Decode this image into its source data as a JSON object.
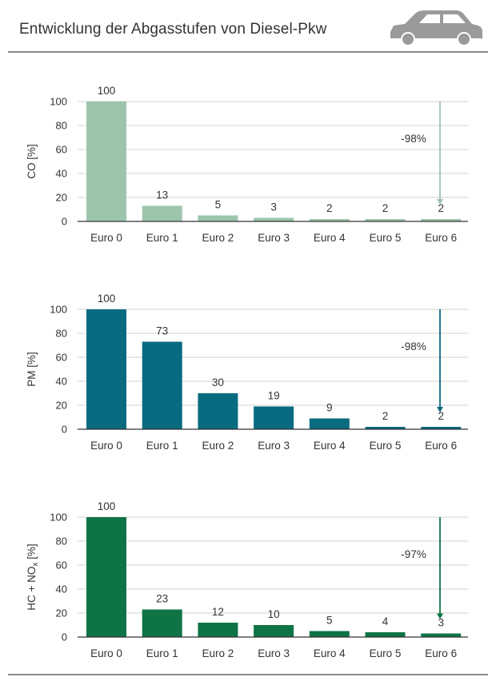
{
  "header": {
    "title": "Entwicklung der Abgasstufen von Diesel-Pkw",
    "icon": "car-icon"
  },
  "chart_data": [
    {
      "type": "bar",
      "ylabel": "CO [%]",
      "ylabel_sub": "",
      "ylim": [
        0,
        100
      ],
      "yticks": [
        0,
        20,
        40,
        60,
        80,
        100
      ],
      "color": "#9dc5ac",
      "arrow_color": "#9dc5ac",
      "categories": [
        "Euro 0",
        "Euro 1",
        "Euro 2",
        "Euro 3",
        "Euro 4",
        "Euro 5",
        "Euro 6"
      ],
      "values": [
        100,
        13,
        5,
        3,
        2,
        2,
        2
      ],
      "labels": [
        "100",
        "13",
        "5",
        "3",
        "2",
        "2",
        "2"
      ],
      "annotation": "-98%"
    },
    {
      "type": "bar",
      "ylabel": "PM [%]",
      "ylabel_sub": "",
      "ylim": [
        0,
        100
      ],
      "yticks": [
        0,
        20,
        40,
        60,
        80,
        100
      ],
      "color": "#096b80",
      "arrow_color": "#096b80",
      "categories": [
        "Euro 0",
        "Euro 1",
        "Euro 2",
        "Euro 3",
        "Euro 4",
        "Euro 5",
        "Euro 6"
      ],
      "values": [
        100,
        73,
        30,
        19,
        9,
        2,
        2
      ],
      "labels": [
        "100",
        "73",
        "30",
        "19",
        "9",
        "2",
        "2"
      ],
      "annotation": "-98%"
    },
    {
      "type": "bar",
      "ylabel": "HC + NO",
      "ylabel_sub": "x",
      "ylabel_suffix": " [%]",
      "ylim": [
        0,
        100
      ],
      "yticks": [
        0,
        20,
        40,
        60,
        80,
        100
      ],
      "color": "#0f7445",
      "arrow_color": "#0f7445",
      "categories": [
        "Euro 0",
        "Euro 1",
        "Euro 2",
        "Euro 3",
        "Euro 4",
        "Euro 5",
        "Euro 6"
      ],
      "values": [
        100,
        23,
        12,
        10,
        5,
        4,
        3
      ],
      "labels": [
        "100",
        "23",
        "12",
        "10",
        "5",
        "4",
        "3"
      ],
      "annotation": "-97%"
    }
  ]
}
